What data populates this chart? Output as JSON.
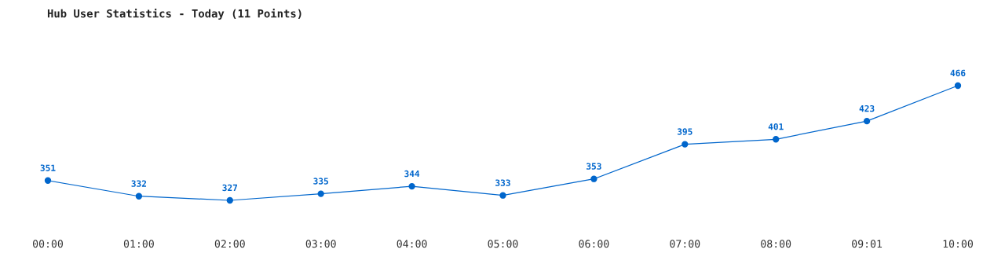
{
  "chart_data": {
    "type": "line",
    "title": "Hub User Statistics - Today (11 Points)",
    "categories": [
      "00:00",
      "01:00",
      "02:00",
      "03:00",
      "04:00",
      "05:00",
      "06:00",
      "07:00",
      "08:00",
      "09:01",
      "10:00"
    ],
    "series": [
      {
        "color": "#0066cc",
        "values": [
          351,
          332,
          327,
          335,
          344,
          333,
          353,
          395,
          401,
          423,
          466
        ]
      }
    ],
    "data_labels": true,
    "marker": "circle",
    "grid": false,
    "legend": false,
    "tick_labels": "x"
  }
}
